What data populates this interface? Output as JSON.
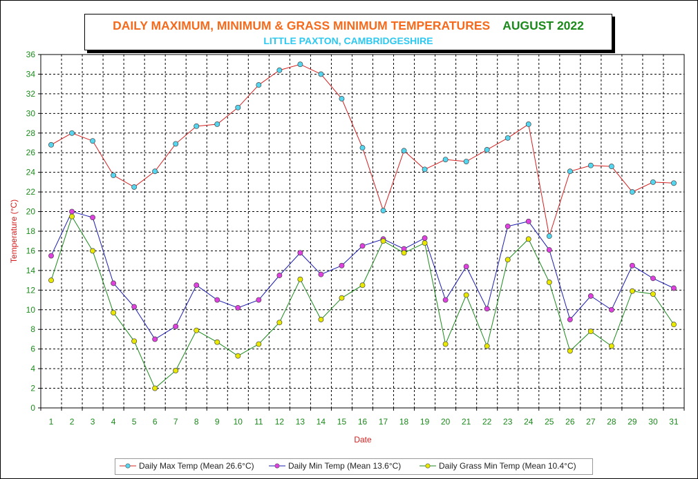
{
  "title": {
    "main": "DAILY MAXIMUM, MINIMUM & GRASS MINIMUM TEMPERATURES",
    "month": "AUGUST 2022",
    "subtitle": "LITTLE PAXTON, CAMBRIDGESHIRE"
  },
  "colors": {
    "title": "#f46b1e",
    "month": "#1a8a1a",
    "subtitle": "#2cc8f0",
    "axis_label": "#d42020",
    "tick_label": "#1a8a1a",
    "max_line": "#d42020",
    "max_marker": "#55d6f0",
    "min_line": "#1a1ab0",
    "min_marker": "#e040e0",
    "grass_line": "#1a8a1a",
    "grass_marker": "#e8e800"
  },
  "chart_data": {
    "type": "line",
    "xlabel": "Date",
    "ylabel": "Temperature (°C)",
    "ylim": [
      0,
      36
    ],
    "yticks": [
      0,
      2,
      4,
      6,
      8,
      10,
      12,
      14,
      16,
      18,
      20,
      22,
      24,
      26,
      28,
      30,
      32,
      34,
      36
    ],
    "grid": true,
    "legend_position": "bottom",
    "x": [
      1,
      2,
      3,
      4,
      5,
      6,
      7,
      8,
      9,
      10,
      11,
      12,
      13,
      14,
      15,
      16,
      17,
      18,
      19,
      20,
      21,
      22,
      23,
      24,
      25,
      26,
      27,
      28,
      29,
      30,
      31
    ],
    "series": [
      {
        "name": "Daily Max Temp (Mean 26.6°C)",
        "line_color": "#d42020",
        "marker_color": "#55d6f0",
        "values": [
          26.8,
          28.0,
          27.2,
          23.7,
          22.5,
          24.1,
          26.9,
          28.7,
          28.9,
          30.6,
          32.9,
          34.4,
          35.0,
          34.0,
          31.5,
          26.5,
          20.1,
          26.2,
          24.3,
          25.3,
          25.1,
          26.3,
          27.5,
          28.9,
          17.5,
          24.1,
          24.7,
          24.6,
          22.0,
          23.0,
          22.9
        ]
      },
      {
        "name": "Daily Min Temp (Mean 13.6°C)",
        "line_color": "#1a1ab0",
        "marker_color": "#e040e0",
        "values": [
          15.5,
          20.0,
          19.4,
          12.7,
          10.3,
          7.0,
          8.3,
          12.5,
          11.0,
          10.2,
          11.0,
          13.5,
          15.8,
          13.6,
          14.5,
          16.5,
          17.2,
          16.2,
          17.3,
          11.0,
          14.4,
          10.1,
          18.5,
          19.0,
          16.1,
          9.0,
          11.4,
          10.0,
          14.5,
          13.2,
          12.2
        ]
      },
      {
        "name": "Daily Grass Min Temp (Mean 10.4°C)",
        "line_color": "#1a8a1a",
        "marker_color": "#e8e800",
        "values": [
          13.0,
          19.5,
          16.0,
          9.7,
          6.8,
          2.0,
          3.8,
          7.9,
          6.7,
          5.3,
          6.5,
          8.7,
          13.1,
          9.0,
          11.2,
          12.5,
          17.0,
          15.8,
          16.8,
          6.5,
          11.5,
          6.3,
          15.1,
          17.2,
          12.8,
          5.8,
          7.8,
          6.3,
          11.9,
          11.6,
          8.5
        ]
      }
    ]
  }
}
